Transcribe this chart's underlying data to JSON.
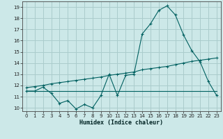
{
  "xlabel": "Humidex (Indice chaleur)",
  "ylabel": "",
  "background_color": "#cce8e8",
  "grid_color": "#aacccc",
  "line_color": "#006060",
  "xlim": [
    -0.5,
    23.5
  ],
  "ylim": [
    9.7,
    19.5
  ],
  "xticks": [
    0,
    1,
    2,
    3,
    4,
    5,
    6,
    7,
    8,
    9,
    10,
    11,
    12,
    13,
    14,
    15,
    16,
    17,
    18,
    19,
    20,
    21,
    22,
    23
  ],
  "yticks": [
    10,
    11,
    12,
    13,
    14,
    15,
    16,
    17,
    18,
    19
  ],
  "line1_x": [
    0,
    1,
    2,
    3,
    4,
    5,
    6,
    7,
    8,
    9,
    10,
    11,
    12,
    13,
    14,
    15,
    16,
    17,
    18,
    19,
    20,
    21,
    22,
    23
  ],
  "line1_y": [
    11.5,
    11.5,
    11.85,
    11.3,
    10.4,
    10.65,
    9.9,
    10.3,
    10.0,
    11.1,
    13.0,
    11.1,
    12.9,
    13.0,
    16.6,
    17.5,
    18.7,
    19.1,
    18.3,
    16.5,
    15.1,
    14.1,
    12.35,
    11.1
  ],
  "line2_x": [
    0,
    1,
    2,
    3,
    4,
    5,
    6,
    7,
    8,
    9,
    10,
    11,
    12,
    13,
    14,
    15,
    16,
    17,
    18,
    19,
    20,
    21,
    22,
    23
  ],
  "line2_y": [
    11.8,
    11.9,
    12.0,
    12.15,
    12.25,
    12.35,
    12.45,
    12.55,
    12.65,
    12.75,
    12.9,
    13.0,
    13.1,
    13.2,
    13.4,
    13.5,
    13.6,
    13.7,
    13.85,
    14.0,
    14.15,
    14.25,
    14.35,
    14.45
  ],
  "line3_x": [
    0,
    1,
    2,
    3,
    4,
    5,
    6,
    7,
    8,
    9,
    10,
    11,
    12,
    13,
    14,
    15,
    16,
    17,
    18,
    19,
    20,
    21,
    22,
    23
  ],
  "line3_y": [
    11.5,
    11.5,
    11.5,
    11.5,
    11.5,
    11.5,
    11.5,
    11.5,
    11.5,
    11.5,
    11.5,
    11.5,
    11.5,
    11.5,
    11.5,
    11.5,
    11.5,
    11.5,
    11.5,
    11.5,
    11.5,
    11.5,
    11.5,
    11.5
  ]
}
